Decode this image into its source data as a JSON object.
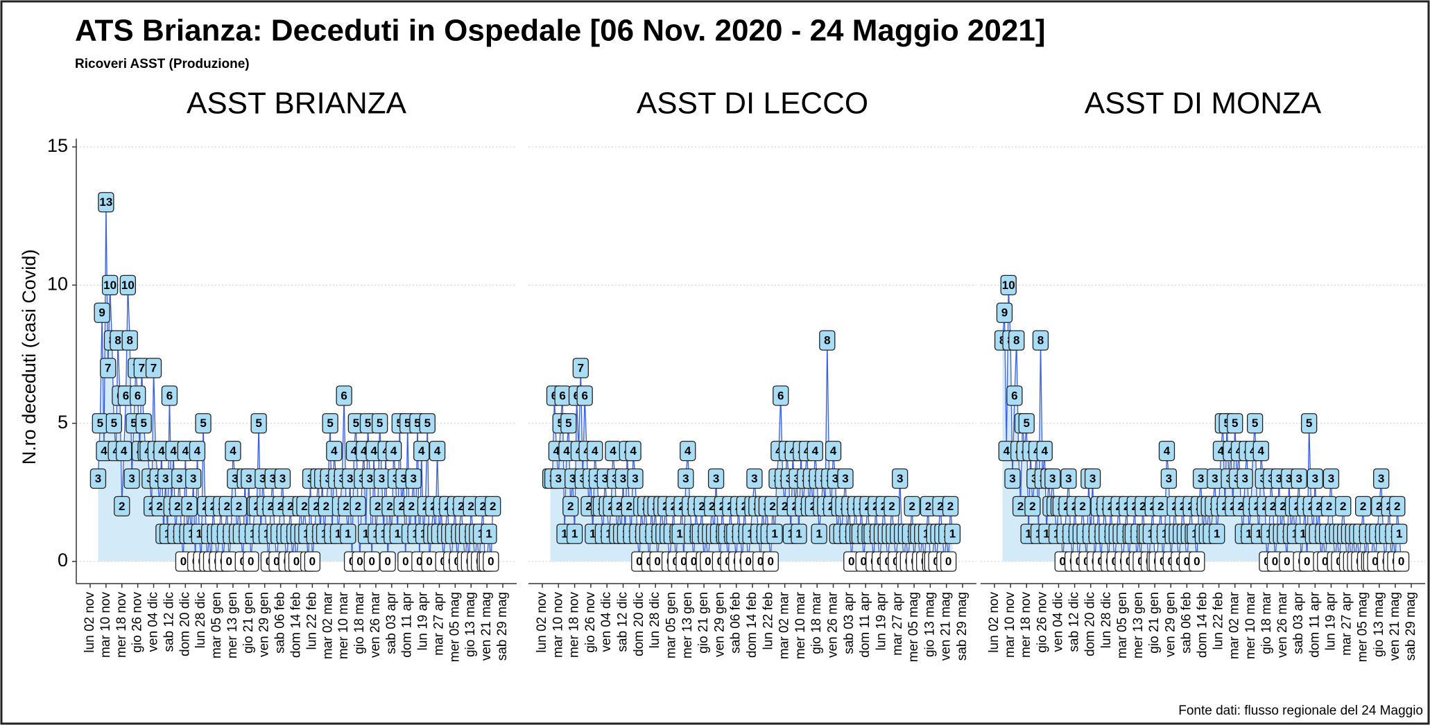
{
  "chart_data": {
    "type": "line",
    "title": "ATS Brianza: Deceduti in Ospedale [06 Nov. 2020 - 24 Maggio 2021]",
    "subtitle": "Ricoveri ASST (Produzione)",
    "y_label": "N.ro deceduti (casi Covid)",
    "source": "Fonte dati: flusso regionale del 24 Maggio",
    "ylim": [
      -0.8,
      15.3
    ],
    "yticks": [
      0,
      5,
      10,
      15
    ],
    "grid": true,
    "line_color": "#3a5fe0",
    "area_color": "#d3ebf8",
    "label_fill": "#a9dcf5",
    "categories": [
      "lun 02 nov",
      null,
      null,
      null,
      null,
      null,
      null,
      null,
      "mar 10 nov",
      null,
      null,
      null,
      null,
      null,
      null,
      null,
      "mer 18 nov",
      null,
      null,
      null,
      null,
      null,
      null,
      null,
      "gio 26 nov",
      null,
      null,
      null,
      null,
      null,
      null,
      null,
      "ven 04 dic",
      null,
      null,
      null,
      null,
      null,
      null,
      null,
      "sab 12 dic",
      null,
      null,
      null,
      null,
      null,
      null,
      null,
      "dom 20 dic",
      null,
      null,
      null,
      null,
      null,
      null,
      null,
      "lun 28 dic",
      null,
      null,
      null,
      null,
      null,
      null,
      null,
      "mar 05 gen",
      null,
      null,
      null,
      null,
      null,
      null,
      null,
      "mer 13 gen",
      null,
      null,
      null,
      null,
      null,
      null,
      null,
      "gio 21 gen",
      null,
      null,
      null,
      null,
      null,
      null,
      null,
      "ven 29 gen",
      null,
      null,
      null,
      null,
      null,
      null,
      null,
      "sab 06 feb",
      null,
      null,
      null,
      null,
      null,
      null,
      null,
      "dom 14 feb",
      null,
      null,
      null,
      null,
      null,
      null,
      null,
      "lun 22 feb",
      null,
      null,
      null,
      null,
      null,
      null,
      null,
      "mar 02 mar",
      null,
      null,
      null,
      null,
      null,
      null,
      null,
      "mer 10 mar",
      null,
      null,
      null,
      null,
      null,
      null,
      null,
      "gio 18 mar",
      null,
      null,
      null,
      null,
      null,
      null,
      null,
      "ven 26 mar",
      null,
      null,
      null,
      null,
      null,
      null,
      null,
      "sab 03 apr",
      null,
      null,
      null,
      null,
      null,
      null,
      null,
      "dom 11 apr",
      null,
      null,
      null,
      null,
      null,
      null,
      null,
      "lun 19 apr",
      null,
      null,
      null,
      null,
      null,
      null,
      null,
      "mar 27 apr",
      null,
      null,
      null,
      null,
      null,
      null,
      null,
      "mer 05 mag",
      null,
      null,
      null,
      null,
      null,
      null,
      null,
      "gio 13 mag",
      null,
      null,
      null,
      null,
      null,
      null,
      null,
      "ven 21 mag",
      null,
      null,
      null,
      null,
      null,
      null,
      null,
      "sab 29 mag"
    ],
    "series": [
      {
        "name": "ASST BRIANZA",
        "values": [
          null,
          null,
          null,
          null,
          3,
          5,
          9,
          4,
          13,
          7,
          10,
          8,
          5,
          4,
          8,
          6,
          2,
          4,
          6,
          10,
          8,
          3,
          5,
          7,
          6,
          4,
          7,
          5,
          4,
          4,
          3,
          2,
          7,
          4,
          3,
          2,
          4,
          1,
          3,
          1,
          6,
          2,
          4,
          1,
          2,
          3,
          1,
          0,
          4,
          1,
          2,
          1,
          3,
          0,
          4,
          1,
          0,
          5,
          2,
          0,
          1,
          0,
          2,
          1,
          0,
          1,
          2,
          0,
          1,
          2,
          0,
          1,
          4,
          3,
          1,
          2,
          1,
          0,
          3,
          1,
          3,
          0,
          1,
          2,
          2,
          5,
          1,
          3,
          2,
          1,
          0,
          2,
          3,
          1,
          0,
          1,
          2,
          3,
          1,
          0,
          1,
          2,
          0,
          1,
          0,
          1,
          2,
          1,
          2,
          1,
          0,
          3,
          0,
          1,
          2,
          3,
          1,
          3,
          1,
          2,
          3,
          5,
          1,
          4,
          3,
          1,
          2,
          3,
          6,
          2,
          1,
          3,
          0,
          4,
          5,
          2,
          0,
          3,
          4,
          1,
          5,
          3,
          0,
          4,
          1,
          2,
          5,
          3,
          1,
          4,
          0,
          2,
          1,
          4,
          3,
          1,
          5,
          2,
          3,
          0,
          5,
          1,
          2,
          3,
          1,
          5,
          0,
          4,
          1,
          2,
          5,
          0,
          1,
          2,
          1,
          4,
          1,
          2,
          0,
          1,
          2,
          1,
          0,
          1,
          2,
          0,
          1,
          2,
          1,
          0,
          1,
          0,
          2,
          1,
          0,
          1,
          0,
          1,
          2,
          0,
          0,
          1,
          0,
          2,
          null,
          null,
          null,
          null,
          null
        ]
      },
      {
        "name": "ASST DI LECCO",
        "values": [
          null,
          null,
          null,
          null,
          3,
          3,
          6,
          4,
          3,
          5,
          6,
          1,
          4,
          5,
          2,
          3,
          1,
          6,
          4,
          7,
          3,
          6,
          4,
          2,
          3,
          1,
          4,
          3,
          2,
          2,
          1,
          3,
          2,
          1,
          2,
          4,
          3,
          1,
          2,
          1,
          3,
          1,
          4,
          2,
          1,
          4,
          3,
          1,
          0,
          2,
          1,
          2,
          1,
          0,
          2,
          1,
          2,
          0,
          1,
          2,
          1,
          2,
          1,
          0,
          1,
          2,
          0,
          1,
          1,
          2,
          0,
          3,
          4,
          2,
          1,
          0,
          2,
          1,
          1,
          2,
          0,
          1,
          0,
          1,
          2,
          1,
          3,
          1,
          0,
          2,
          1,
          1,
          0,
          2,
          1,
          1,
          0,
          2,
          1,
          0,
          2,
          1,
          0,
          1,
          2,
          3,
          2,
          1,
          0,
          2,
          1,
          2,
          1,
          0,
          2,
          1,
          3,
          4,
          6,
          3,
          2,
          4,
          3,
          1,
          4,
          2,
          3,
          1,
          4,
          2,
          3,
          4,
          2,
          3,
          2,
          4,
          3,
          1,
          2,
          3,
          2,
          8,
          3,
          2,
          4,
          3,
          1,
          2,
          1,
          2,
          3,
          1,
          2,
          0,
          1,
          2,
          1,
          1,
          2,
          0,
          1,
          2,
          1,
          1,
          0,
          2,
          1,
          0,
          1,
          2,
          1,
          0,
          1,
          2,
          1,
          0,
          1,
          3,
          1,
          0,
          1,
          0,
          1,
          2,
          0,
          1,
          1,
          0,
          1,
          0,
          1,
          2,
          0,
          0,
          1,
          0,
          1,
          2,
          1,
          0,
          1,
          0,
          2,
          1,
          null,
          null,
          null,
          null,
          null
        ]
      },
      {
        "name": "ASST DI MONZA",
        "values": [
          null,
          null,
          null,
          null,
          8,
          9,
          4,
          10,
          8,
          3,
          6,
          8,
          4,
          2,
          5,
          4,
          5,
          1,
          4,
          2,
          3,
          4,
          1,
          8,
          3,
          4,
          1,
          3,
          2,
          3,
          2,
          1,
          2,
          2,
          0,
          1,
          2,
          3,
          1,
          0,
          2,
          1,
          0,
          1,
          2,
          1,
          0,
          3,
          1,
          3,
          0,
          1,
          2,
          0,
          1,
          2,
          1,
          0,
          2,
          1,
          0,
          1,
          2,
          1,
          0,
          1,
          2,
          0,
          1,
          1,
          2,
          0,
          1,
          0,
          2,
          1,
          1,
          0,
          1,
          2,
          0,
          0,
          1,
          2,
          0,
          1,
          4,
          3,
          0,
          1,
          2,
          1,
          0,
          1,
          2,
          1,
          0,
          1,
          2,
          1,
          1,
          0,
          2,
          3,
          1,
          2,
          1,
          2,
          1,
          2,
          3,
          1,
          2,
          4,
          5,
          2,
          5,
          3,
          4,
          2,
          5,
          3,
          4,
          2,
          1,
          3,
          4,
          1,
          2,
          4,
          5,
          2,
          1,
          4,
          3,
          2,
          0,
          1,
          3,
          2,
          0,
          1,
          3,
          1,
          2,
          1,
          0,
          3,
          1,
          2,
          1,
          2,
          3,
          0,
          1,
          2,
          0,
          5,
          2,
          1,
          3,
          1,
          2,
          0,
          1,
          0,
          1,
          2,
          3,
          1,
          0,
          1,
          0,
          1,
          2,
          1,
          0,
          1,
          0,
          1,
          0,
          1,
          0,
          1,
          2,
          0,
          1,
          0,
          0,
          1,
          0,
          1,
          2,
          3,
          1,
          0,
          1,
          2,
          0,
          1,
          0,
          2,
          1,
          0,
          null,
          null,
          null,
          null,
          null
        ]
      }
    ]
  }
}
